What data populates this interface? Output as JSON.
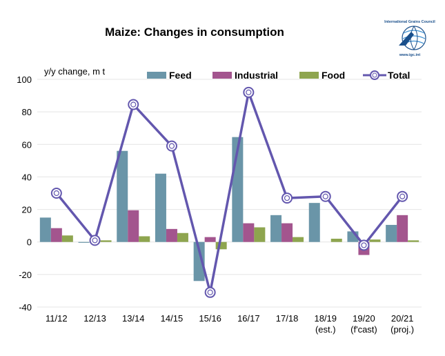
{
  "logo": {
    "org_name": "International Grains Council",
    "url_text": "www.igc.int"
  },
  "colors": {
    "feed": "#6a95a8",
    "industrial": "#a3558e",
    "food": "#8ea54f",
    "total": "#6357ae",
    "grid": "#e4e4e4"
  },
  "chart_data": {
    "type": "bar",
    "title": "Maize: Changes in consumption",
    "ylabel": "y/y change, m t",
    "xlabel": "",
    "ylim": [
      -40,
      100
    ],
    "yticks": [
      -40,
      -20,
      0,
      20,
      40,
      60,
      80,
      100
    ],
    "categories": [
      [
        "11/12"
      ],
      [
        "12/13"
      ],
      [
        "13/14"
      ],
      [
        "14/15"
      ],
      [
        "15/16"
      ],
      [
        "16/17"
      ],
      [
        "17/18"
      ],
      [
        "18/19",
        "(est.)"
      ],
      [
        "19/20",
        "(f'cast)"
      ],
      [
        "20/21",
        "(proj.)"
      ]
    ],
    "legend_position": "top",
    "series": [
      {
        "name": "Feed",
        "type": "bar",
        "values": [
          15,
          -0.5,
          56,
          42,
          -24,
          64.5,
          16.5,
          24,
          6.5,
          10.5
        ]
      },
      {
        "name": "Industrial",
        "type": "bar",
        "values": [
          8.5,
          0,
          19.5,
          8,
          3,
          11.5,
          11.5,
          0,
          -8,
          16.5
        ]
      },
      {
        "name": "Food",
        "type": "bar",
        "values": [
          4,
          1,
          3.5,
          5.5,
          -4.5,
          9,
          3,
          2,
          1.5,
          1
        ]
      },
      {
        "name": "Total",
        "type": "line",
        "values": [
          30,
          1,
          84.5,
          59,
          -31,
          92,
          27,
          28,
          -2,
          28
        ]
      }
    ]
  }
}
